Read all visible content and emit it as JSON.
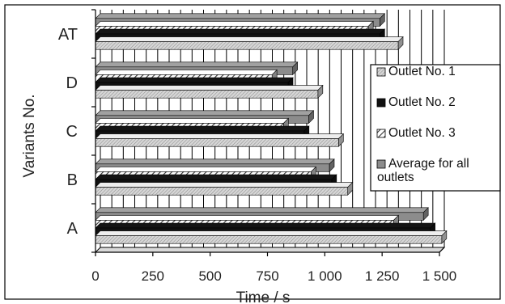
{
  "chart_data": {
    "type": "bar",
    "orientation": "horizontal",
    "style": "3d",
    "categories": [
      "A",
      "B",
      "C",
      "D",
      "AT"
    ],
    "series": [
      {
        "name": "Average for all outlets",
        "values": [
          1430,
          1020,
          930,
          860,
          1240
        ],
        "color": "#8c8c8c",
        "pattern": "solid"
      },
      {
        "name": "Outlet No. 3",
        "values": [
          1300,
          940,
          820,
          770,
          1190
        ],
        "color": "#ffffff",
        "pattern": "diagonal-hatch"
      },
      {
        "name": "Outlet No. 2",
        "values": [
          1460,
          1030,
          910,
          840,
          1240
        ],
        "color": "#111111",
        "pattern": "solid"
      },
      {
        "name": "Outlet No. 1",
        "values": [
          1510,
          1100,
          1060,
          970,
          1320
        ],
        "color": "#cfcfcf",
        "pattern": "fine-hatch"
      }
    ],
    "xlabel": "Time / s",
    "ylabel": "Variants No.",
    "xlim": [
      0,
      1500
    ],
    "xticks": [
      0,
      250,
      500,
      750,
      1000,
      1250,
      1500
    ],
    "xtick_labels": [
      "0",
      "250",
      "500",
      "750",
      "1 000",
      "1 250",
      "1 500"
    ],
    "grid": "vertical",
    "legend_position": "right"
  }
}
